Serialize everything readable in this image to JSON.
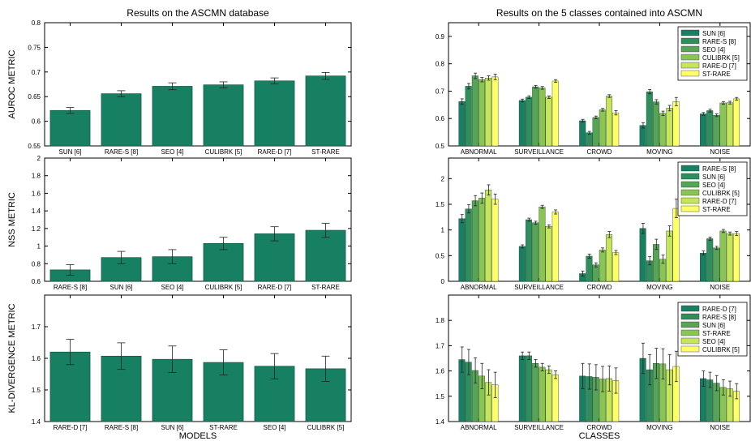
{
  "titles": {
    "left": "Results on the ASCMN database",
    "right": "Results on the 5 classes contained into ASCMN"
  },
  "axis_labels": {
    "auroc": "AUROC METRIC",
    "nss": "NSS METRIC",
    "kl": "KL-DIVERGENCE METRIC",
    "models": "MODELS",
    "classes": "CLASSES"
  },
  "chart_data": [
    {
      "id": "auroc-models",
      "type": "bar",
      "ylabel": "AUROC METRIC",
      "ylim": [
        0.55,
        0.8
      ],
      "yticks": [
        0.55,
        0.6,
        0.65,
        0.7,
        0.75,
        0.8
      ],
      "ytick_labels": [
        "0.55",
        "0.6",
        "0.65",
        "0.7",
        "0.75",
        "0.8"
      ],
      "categories": [
        "SUN [6]",
        "RARE-S [8]",
        "SEO [4]",
        "CULIBRK [5]",
        "RARE-D [7]",
        "ST-RARE"
      ],
      "values": [
        0.622,
        0.656,
        0.671,
        0.674,
        0.682,
        0.692
      ],
      "errors": [
        0.006,
        0.006,
        0.007,
        0.006,
        0.006,
        0.007
      ]
    },
    {
      "id": "auroc-classes",
      "type": "bar",
      "ylim": [
        0.5,
        0.95
      ],
      "yticks": [
        0.5,
        0.6,
        0.7,
        0.8,
        0.9
      ],
      "ytick_labels": [
        "0.5",
        "0.6",
        "0.7",
        "0.8",
        "0.9"
      ],
      "categories": [
        "ABNORMAL",
        "SURVEILLANCE",
        "CROWD",
        "MOVING",
        "NOISE"
      ],
      "series": [
        {
          "name": "SUN [6]",
          "values": [
            0.662,
            0.666,
            0.592,
            0.575,
            0.617
          ],
          "errors": [
            0.01,
            0.005,
            0.005,
            0.01,
            0.005
          ]
        },
        {
          "name": "RARE-S [8]",
          "values": [
            0.718,
            0.678,
            0.548,
            0.698,
            0.629
          ],
          "errors": [
            0.01,
            0.005,
            0.005,
            0.008,
            0.005
          ]
        },
        {
          "name": "SEO [4]",
          "values": [
            0.756,
            0.716,
            0.604,
            0.661,
            0.612
          ],
          "errors": [
            0.01,
            0.005,
            0.005,
            0.008,
            0.005
          ]
        },
        {
          "name": "CULIBRK [5]",
          "values": [
            0.742,
            0.712,
            0.632,
            0.619,
            0.657
          ],
          "errors": [
            0.008,
            0.005,
            0.005,
            0.008,
            0.005
          ]
        },
        {
          "name": "RARE-D [7]",
          "values": [
            0.748,
            0.678,
            0.682,
            0.638,
            0.658
          ],
          "errors": [
            0.008,
            0.005,
            0.005,
            0.01,
            0.005
          ]
        },
        {
          "name": "ST-RARE",
          "values": [
            0.752,
            0.737,
            0.621,
            0.662,
            0.672
          ],
          "errors": [
            0.01,
            0.005,
            0.008,
            0.015,
            0.005
          ]
        }
      ]
    },
    {
      "id": "nss-models",
      "type": "bar",
      "ylabel": "NSS METRIC",
      "ylim": [
        0.6,
        2.0
      ],
      "yticks": [
        0.6,
        0.8,
        1.0,
        1.2,
        1.4,
        1.6,
        1.8,
        2.0
      ],
      "ytick_labels": [
        "0.6",
        "0.8",
        "1",
        "1.2",
        "1.4",
        "1.6",
        "1.8",
        "2"
      ],
      "categories": [
        "RARE-S [8]",
        "SUN [6]",
        "SEO [4]",
        "CULIBRK [5]",
        "RARE-D [7]",
        "ST-RARE"
      ],
      "values": [
        0.73,
        0.87,
        0.88,
        1.03,
        1.14,
        1.18
      ],
      "errors": [
        0.06,
        0.07,
        0.08,
        0.07,
        0.08,
        0.08
      ]
    },
    {
      "id": "nss-classes",
      "type": "bar",
      "ylim": [
        0,
        2.4
      ],
      "yticks": [
        0,
        0.5,
        1.0,
        1.5,
        2.0
      ],
      "ytick_labels": [
        "0",
        "0.5",
        "1",
        "1.5",
        "2"
      ],
      "categories": [
        "ABNORMAL",
        "SURVEILLANCE",
        "CROWD",
        "MOVING",
        "NOISE"
      ],
      "series": [
        {
          "name": "RARE-S [8]",
          "values": [
            1.22,
            0.68,
            0.15,
            1.03,
            0.55
          ],
          "errors": [
            0.08,
            0.03,
            0.05,
            0.1,
            0.04
          ]
        },
        {
          "name": "SUN [6]",
          "values": [
            1.41,
            1.2,
            0.49,
            0.4,
            0.83
          ],
          "errors": [
            0.08,
            0.03,
            0.04,
            0.08,
            0.03
          ]
        },
        {
          "name": "SEO [4]",
          "values": [
            1.57,
            1.14,
            0.32,
            0.72,
            0.65
          ],
          "errors": [
            0.1,
            0.03,
            0.04,
            0.1,
            0.03
          ]
        },
        {
          "name": "CULIBRK [5]",
          "values": [
            1.62,
            1.45,
            0.61,
            0.43,
            0.98
          ],
          "errors": [
            0.1,
            0.03,
            0.04,
            0.08,
            0.03
          ]
        },
        {
          "name": "RARE-D [7]",
          "values": [
            1.78,
            1.07,
            0.91,
            0.98,
            0.93
          ],
          "errors": [
            0.1,
            0.03,
            0.06,
            0.1,
            0.03
          ]
        },
        {
          "name": "ST-RARE",
          "values": [
            1.6,
            1.35,
            0.56,
            1.42,
            0.93
          ],
          "errors": [
            0.1,
            0.04,
            0.04,
            0.18,
            0.04
          ]
        }
      ]
    },
    {
      "id": "kl-models",
      "type": "bar",
      "ylabel": "KL-DIVERGENCE METRIC",
      "xlabel": "MODELS",
      "ylim": [
        1.4,
        1.8
      ],
      "yticks": [
        1.4,
        1.5,
        1.6,
        1.7
      ],
      "ytick_labels": [
        "1.4",
        "1.5",
        "1.6",
        "1.7"
      ],
      "categories": [
        "RARE-D [7]",
        "RARE-S [8]",
        "SUN [6]",
        "ST-RARE",
        "SEO [4]",
        "CULIBRK [5]"
      ],
      "values": [
        1.62,
        1.607,
        1.597,
        1.587,
        1.575,
        1.567
      ],
      "errors": [
        0.04,
        0.042,
        0.042,
        0.04,
        0.04,
        0.04
      ]
    },
    {
      "id": "kl-classes",
      "type": "bar",
      "xlabel": "CLASSES",
      "ylim": [
        1.4,
        1.9
      ],
      "yticks": [
        1.4,
        1.5,
        1.6,
        1.7,
        1.8
      ],
      "ytick_labels": [
        "1.4",
        "1.5",
        "1.6",
        "1.7",
        "1.8"
      ],
      "categories": [
        "ABNORMAL",
        "SURVEILLANCE",
        "CROWD",
        "MOVING",
        "NOISE"
      ],
      "series": [
        {
          "name": "RARE-D [7]",
          "values": [
            1.645,
            1.66,
            1.58,
            1.65,
            1.57
          ],
          "errors": [
            0.05,
            0.015,
            0.05,
            0.06,
            0.03
          ]
        },
        {
          "name": "RARE-S [8]",
          "values": [
            1.635,
            1.66,
            1.578,
            1.605,
            1.565
          ],
          "errors": [
            0.05,
            0.015,
            0.05,
            0.06,
            0.03
          ]
        },
        {
          "name": "SUN [6]",
          "values": [
            1.602,
            1.63,
            1.575,
            1.63,
            1.552
          ],
          "errors": [
            0.05,
            0.015,
            0.05,
            0.06,
            0.03
          ]
        },
        {
          "name": "ST-RARE",
          "values": [
            1.58,
            1.615,
            1.568,
            1.628,
            1.535
          ],
          "errors": [
            0.05,
            0.015,
            0.05,
            0.06,
            0.03
          ]
        },
        {
          "name": "SEO [4]",
          "values": [
            1.555,
            1.605,
            1.57,
            1.605,
            1.53
          ],
          "errors": [
            0.05,
            0.015,
            0.05,
            0.06,
            0.03
          ]
        },
        {
          "name": "CULIBRK [5]",
          "values": [
            1.545,
            1.585,
            1.562,
            1.618,
            1.52
          ],
          "errors": [
            0.05,
            0.015,
            0.05,
            0.06,
            0.03
          ]
        }
      ]
    }
  ],
  "colors": {
    "single_bar": "#177f62",
    "series": [
      "#177f62",
      "#2f8e5b",
      "#56a455",
      "#89c552",
      "#c7e55a",
      "#ffff66"
    ],
    "legend_order_auroc": [
      "#177f62",
      "#2f8e5b",
      "#56a455",
      "#89c552",
      "#c7e55a",
      "#ffff66"
    ]
  }
}
